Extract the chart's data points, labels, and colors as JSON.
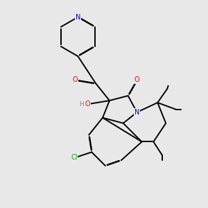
{
  "background_color": "#e8e8e8",
  "bond_color": "#000000",
  "atom_colors": {
    "N": "#0000cc",
    "O": "#ff0000",
    "Cl": "#00aa00",
    "H": "#808080",
    "C": "#000000"
  }
}
